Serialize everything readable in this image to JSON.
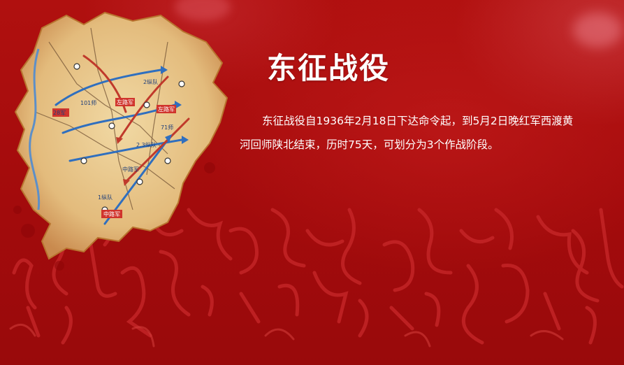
{
  "title": "东征战役",
  "description": "东征战役自1936年2月18日下达命令起，到5月2日晚红军西渡黄河回师陕北结束，历时75天，可划分为3个作战阶段。",
  "map_labels": {
    "l1": "28军",
    "l2": "左路军",
    "l3": "左路军",
    "l4": "中路军",
    "l5": "中路军",
    "l6": "101师",
    "l7": "2纵队",
    "l8": "1纵队",
    "l9": "2.3纵队",
    "l10": "71师"
  },
  "colors": {
    "background": "#a60a0c",
    "map_parchment": "#e9c98e",
    "text": "#ffffff",
    "calligraphy": "#c92b2a"
  }
}
